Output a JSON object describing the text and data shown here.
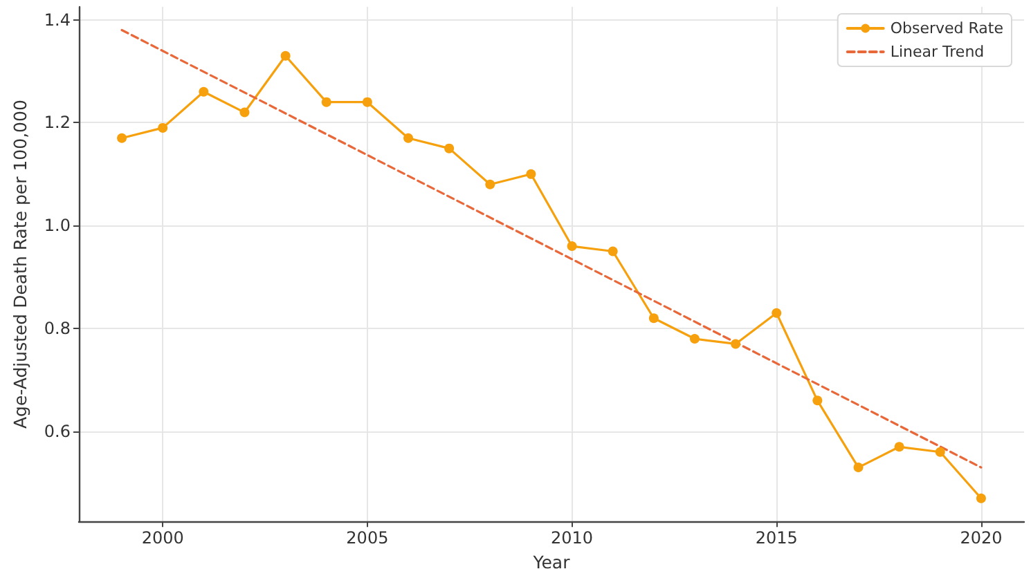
{
  "chart_data": {
    "type": "line",
    "xlabel": "Year",
    "ylabel": "Age-Adjusted Death Rate per 100,000",
    "x": [
      1999,
      2000,
      2001,
      2002,
      2003,
      2004,
      2005,
      2006,
      2007,
      2008,
      2009,
      2010,
      2011,
      2012,
      2013,
      2014,
      2015,
      2016,
      2017,
      2018,
      2019,
      2020
    ],
    "xlim": [
      1997.95,
      2021.05
    ],
    "xticks": [
      2000,
      2005,
      2010,
      2015,
      2020
    ],
    "ylim": [
      0.425,
      1.425
    ],
    "yticks": [
      0.6,
      0.8,
      {
        "value": 1.0,
        "label": "1.0"
      },
      1.2,
      1.4
    ],
    "grid": true,
    "legend": "top right",
    "series": [
      {
        "name": "Observed Rate",
        "color": "#f5a00c",
        "marker": "circle",
        "line_style": "solid",
        "values": [
          1.17,
          1.19,
          1.26,
          1.22,
          1.33,
          1.24,
          1.24,
          1.17,
          1.15,
          1.08,
          1.1,
          0.96,
          0.95,
          0.82,
          0.78,
          0.77,
          0.83,
          0.66,
          0.53,
          0.57,
          0.56,
          0.47
        ]
      },
      {
        "name": "Linear Trend",
        "color": "#e8683a",
        "type": "line",
        "marker": "none",
        "line_style": "dashed",
        "x": [
          1999,
          2020
        ],
        "values": [
          1.38,
          0.53
        ]
      }
    ]
  }
}
